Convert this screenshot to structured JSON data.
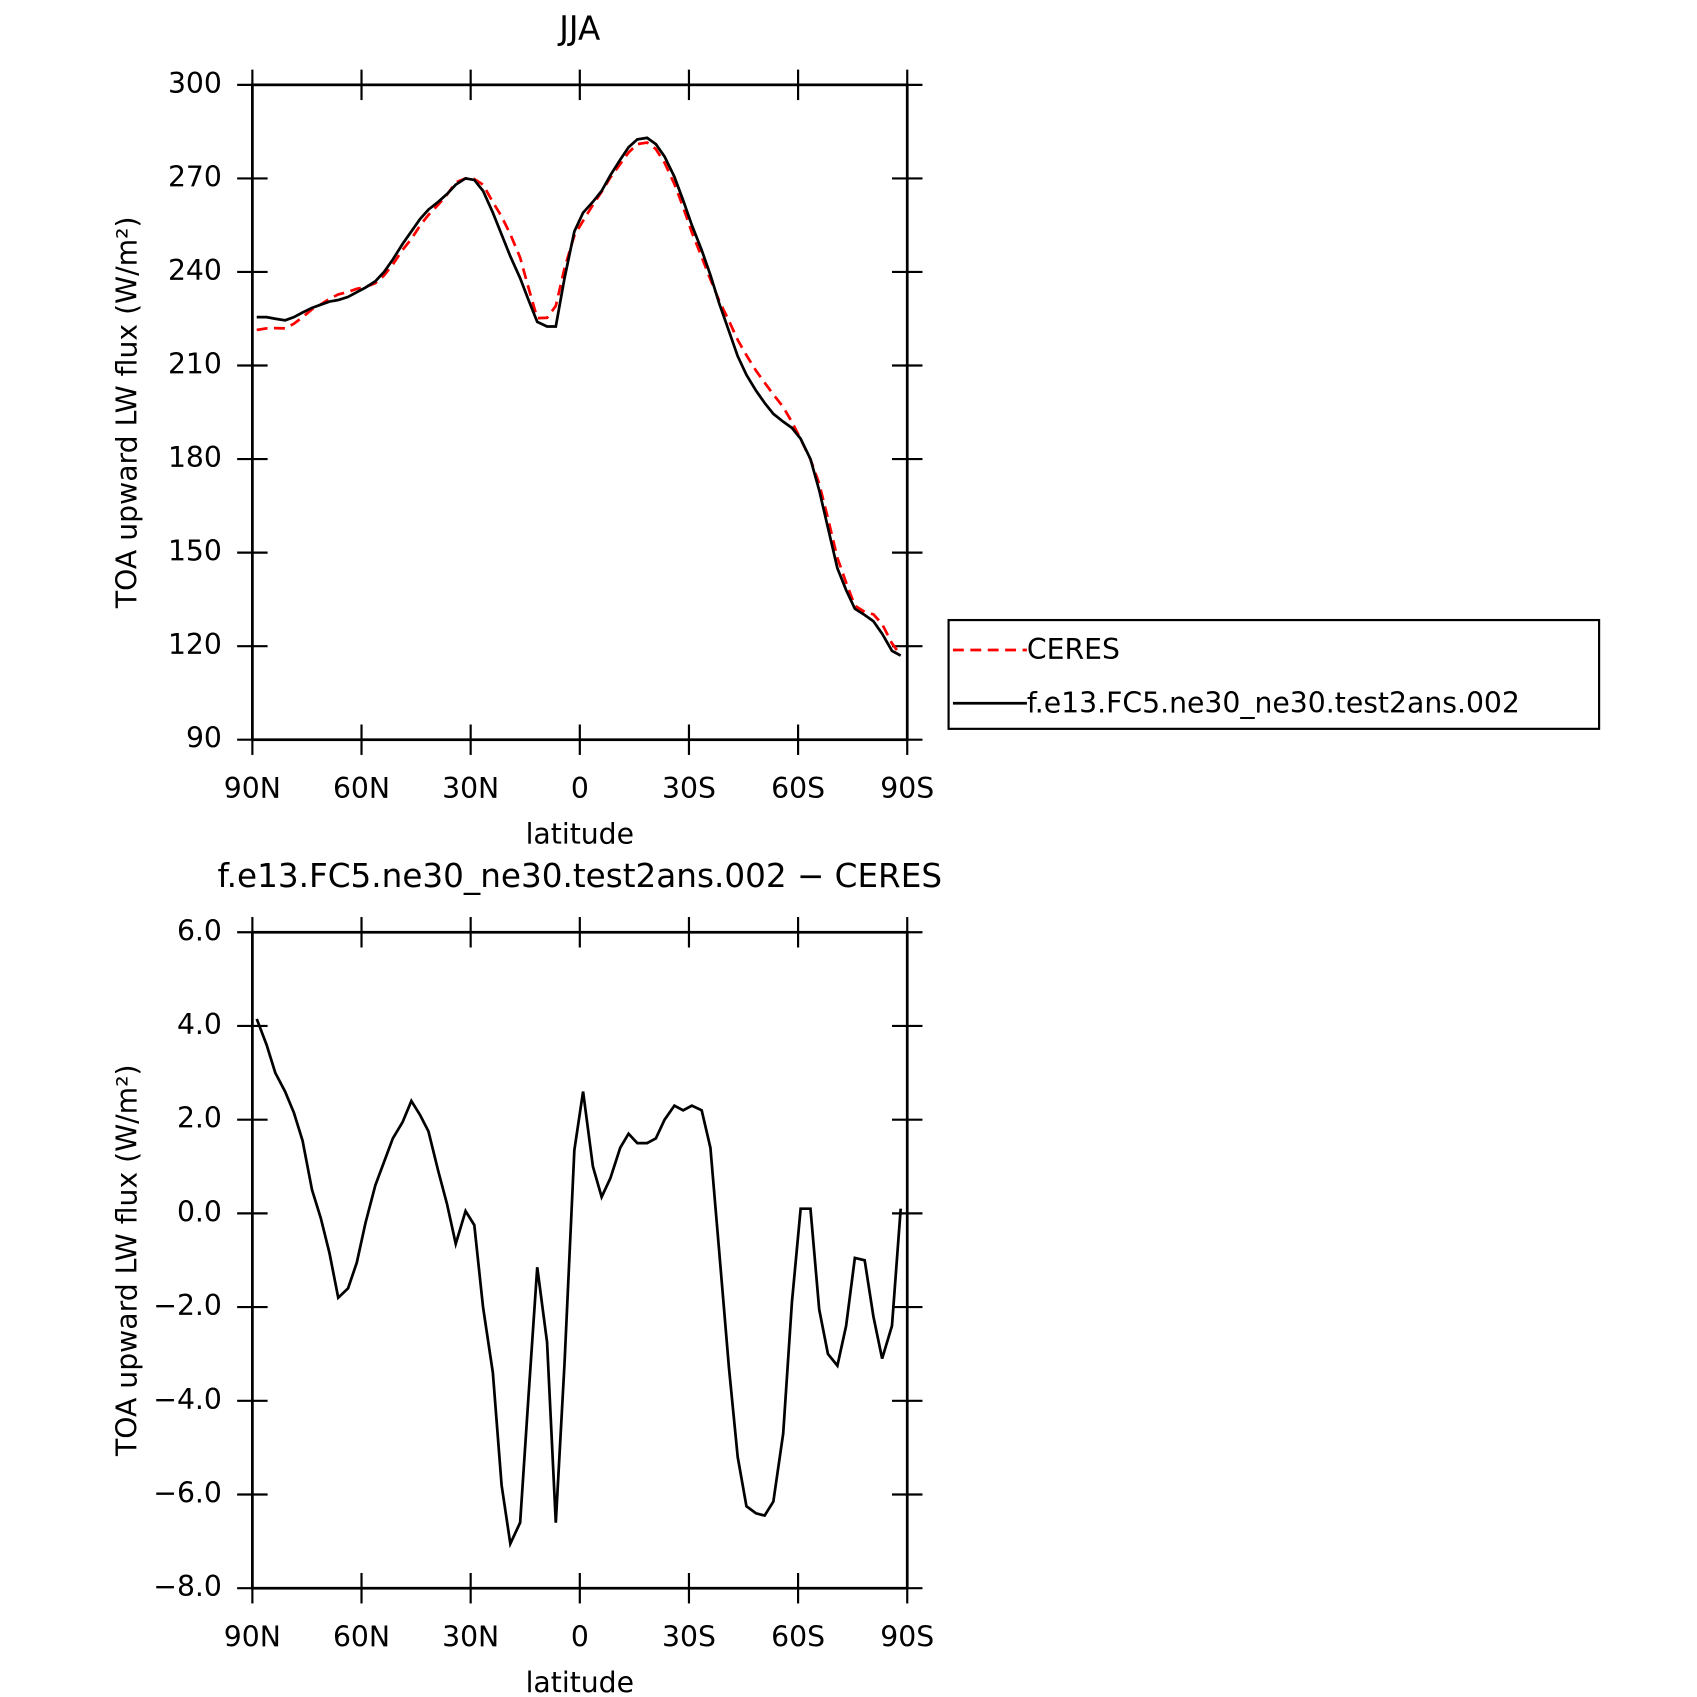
{
  "chart_data": [
    {
      "type": "line",
      "title": "JJA",
      "xlabel": "latitude",
      "ylabel": "TOA upward LW flux (W/m²)",
      "xlim": [
        90,
        -90
      ],
      "xticks": [
        {
          "value": 90,
          "label": "90N"
        },
        {
          "value": 60,
          "label": "60N"
        },
        {
          "value": 30,
          "label": "30N"
        },
        0,
        {
          "value": -30,
          "label": "30S"
        },
        {
          "value": -60,
          "label": "60S"
        },
        {
          "value": -90,
          "label": "90S"
        }
      ],
      "ylim": [
        90,
        300
      ],
      "yticks": [
        90,
        120,
        150,
        180,
        210,
        240,
        270,
        300
      ],
      "legend": "right",
      "x": [
        88.8,
        86.1,
        83.7,
        81.0,
        78.6,
        76.2,
        73.6,
        71.2,
        68.8,
        66.4,
        63.7,
        61.3,
        58.9,
        56.2,
        53.8,
        51.4,
        48.7,
        46.3,
        43.9,
        41.6,
        38.9,
        36.5,
        34.1,
        31.4,
        29.0,
        26.6,
        23.9,
        21.5,
        19.1,
        16.4,
        14.1,
        11.7,
        9.0,
        6.6,
        4.2,
        1.5,
        -0.9,
        -3.6,
        -6.0,
        -8.4,
        -11.1,
        -13.4,
        -15.8,
        -18.5,
        -20.9,
        -23.3,
        -26.0,
        -28.4,
        -30.8,
        -33.5,
        -35.9,
        -38.3,
        -41.0,
        -43.4,
        -45.8,
        -48.4,
        -50.8,
        -53.2,
        -55.9,
        -58.3,
        -60.7,
        -63.4,
        -65.8,
        -68.2,
        -70.8,
        -73.2,
        -75.6,
        -78.3,
        -80.7,
        -83.1,
        -85.8,
        -88.2
      ],
      "series": [
        {
          "name": "CERES",
          "color": "#ff0000",
          "style": "dashed",
          "values": [
            221.4,
            221.9,
            222.0,
            221.9,
            223.4,
            225.5,
            228.0,
            229.6,
            231.4,
            232.8,
            233.6,
            234.6,
            235.2,
            236.4,
            238.9,
            242.4,
            247.1,
            250.6,
            254.9,
            258.3,
            261.6,
            264.8,
            268.7,
            270.0,
            269.8,
            268.0,
            262.4,
            257.8,
            252.1,
            244.6,
            234.9,
            225.2,
            225.3,
            229.1,
            241.2,
            251.7,
            256.4,
            261.5,
            265.7,
            270.3,
            274.6,
            278.3,
            281.0,
            281.5,
            279.4,
            275.0,
            268.2,
            260.8,
            252.7,
            244.8,
            237.6,
            230.8,
            224.3,
            218.2,
            213.3,
            208.4,
            204.5,
            200.7,
            196.7,
            191.9,
            186.4,
            179.9,
            172.1,
            161.0,
            148.3,
            140.4,
            133.0,
            131.0,
            130.2,
            127.1,
            120.9,
            117.1
          ]
        },
        {
          "name": "f.e13.FC5.ne30_ne30.test2ans.002",
          "color": "#000000",
          "style": "solid",
          "values": [
            225.5,
            225.5,
            225,
            224.5,
            225.5,
            227,
            228.5,
            229.5,
            230.5,
            231,
            232,
            233.5,
            235,
            237,
            240,
            244,
            249,
            253,
            257,
            260,
            262.5,
            265,
            268,
            270,
            269.5,
            266,
            259,
            252,
            245,
            238,
            231,
            224,
            222.5,
            222.5,
            238,
            253,
            259,
            262.5,
            266,
            271,
            276,
            280,
            282.5,
            283,
            281,
            277,
            270.5,
            263,
            255,
            247,
            239,
            230,
            221,
            213,
            207,
            202,
            198,
            194.5,
            192,
            190,
            186.5,
            180,
            170,
            158,
            145,
            138,
            132,
            130,
            128,
            124,
            118.5,
            117
          ]
        }
      ]
    },
    {
      "type": "line",
      "title": "f.e13.FC5.ne30_ne30.test2ans.002 − CERES",
      "xlabel": "latitude",
      "ylabel": "TOA upward LW flux (W/m²)",
      "xlim": [
        90,
        -90
      ],
      "xticks": [
        {
          "value": 90,
          "label": "90N"
        },
        {
          "value": 60,
          "label": "60N"
        },
        {
          "value": 30,
          "label": "30N"
        },
        0,
        {
          "value": -30,
          "label": "30S"
        },
        {
          "value": -60,
          "label": "60S"
        },
        {
          "value": -90,
          "label": "90S"
        }
      ],
      "ylim": [
        -8,
        6
      ],
      "yticks": [
        {
          "value": -8,
          "label": "−8.0"
        },
        {
          "value": -6,
          "label": "−6.0"
        },
        {
          "value": -4,
          "label": "−4.0"
        },
        {
          "value": -2,
          "label": "−2.0"
        },
        {
          "value": 0,
          "label": "0.0"
        },
        {
          "value": 2,
          "label": "2.0"
        },
        {
          "value": 4,
          "label": "4.0"
        },
        {
          "value": 6,
          "label": "6.0"
        }
      ],
      "x": [
        88.8,
        86.1,
        83.7,
        81.0,
        78.6,
        76.2,
        73.6,
        71.2,
        68.8,
        66.4,
        63.7,
        61.3,
        58.9,
        56.2,
        53.8,
        51.4,
        48.7,
        46.3,
        43.9,
        41.6,
        38.9,
        36.5,
        34.1,
        31.4,
        29.0,
        26.6,
        23.9,
        21.5,
        19.1,
        16.4,
        14.1,
        11.7,
        9.0,
        6.6,
        4.2,
        1.5,
        -0.9,
        -3.6,
        -6.0,
        -8.4,
        -11.1,
        -13.4,
        -15.8,
        -18.5,
        -20.9,
        -23.3,
        -26.0,
        -28.4,
        -30.8,
        -33.5,
        -35.9,
        -38.3,
        -41.0,
        -43.4,
        -45.8,
        -48.4,
        -50.8,
        -53.2,
        -55.9,
        -58.3,
        -60.7,
        -63.4,
        -65.8,
        -68.2,
        -70.8,
        -73.2,
        -75.6,
        -78.3,
        -80.7,
        -83.1,
        -85.8,
        -88.2
      ],
      "series": [
        {
          "color": "#000000",
          "style": "solid",
          "values": [
            4.15,
            3.6,
            3.0,
            2.6,
            2.15,
            1.55,
            0.5,
            -0.1,
            -0.85,
            -1.8,
            -1.6,
            -1.05,
            -0.2,
            0.6,
            1.1,
            1.6,
            1.95,
            2.4,
            2.1,
            1.75,
            0.9,
            0.2,
            -0.65,
            0.05,
            -0.25,
            -2.0,
            -3.4,
            -5.8,
            -7.05,
            -6.6,
            -3.9,
            -1.15,
            -2.75,
            -6.6,
            -3.2,
            1.35,
            2.6,
            1.0,
            0.35,
            0.75,
            1.4,
            1.7,
            1.5,
            1.5,
            1.6,
            2.0,
            2.3,
            2.2,
            2.3,
            2.2,
            1.4,
            -0.8,
            -3.3,
            -5.2,
            -6.25,
            -6.4,
            -6.45,
            -6.15,
            -4.7,
            -1.9,
            0.1,
            0.1,
            -2.05,
            -3.0,
            -3.25,
            -2.4,
            -0.95,
            -1.0,
            -2.2,
            -3.1,
            -2.4,
            0.1
          ]
        }
      ]
    }
  ]
}
